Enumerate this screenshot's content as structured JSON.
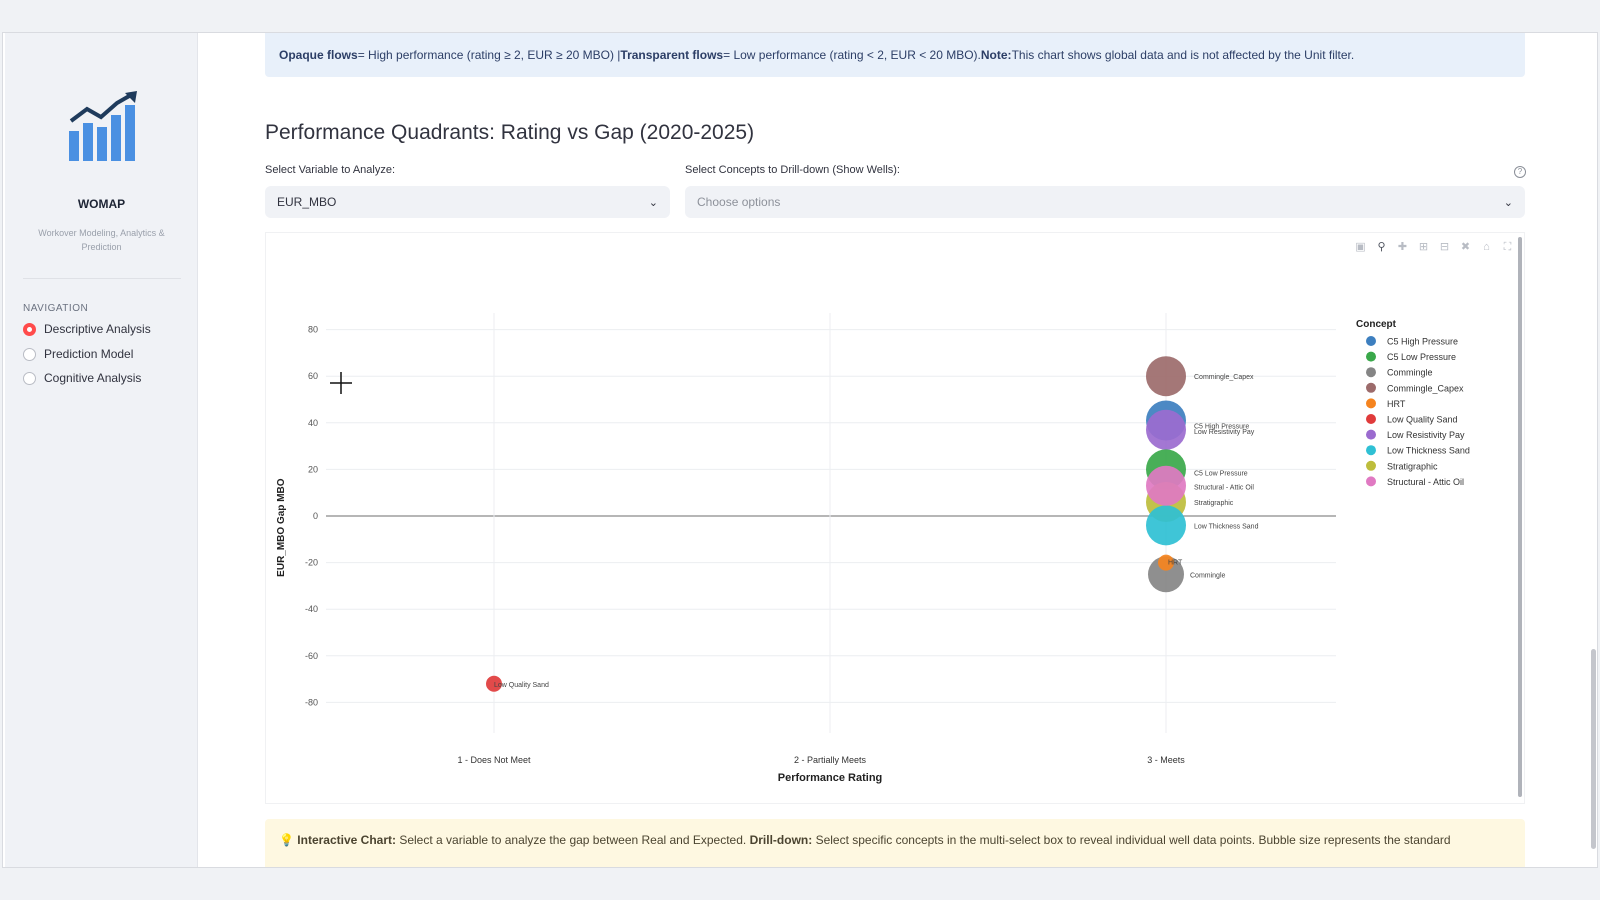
{
  "app": {
    "name": "WOMAP",
    "subtitle": "Workover Modeling, Analytics & Prediction"
  },
  "navigation": {
    "title": "NAVIGATION",
    "items": [
      {
        "label": "Descriptive Analysis",
        "selected": true
      },
      {
        "label": "Prediction Model",
        "selected": false
      },
      {
        "label": "Cognitive Analysis",
        "selected": false
      }
    ]
  },
  "info_banner": {
    "b1": "Opaque flows",
    "t1": " = High performance (rating ≥ 2, EUR ≥ 20 MBO) | ",
    "b2": "Transparent flows",
    "t2": " = Low performance (rating < 2, EUR < 20 MBO). ",
    "b3": "Note:",
    "t3": " This chart shows global data and is not affected by the Unit filter."
  },
  "section": {
    "title": "Performance Quadrants: Rating vs Gap (2020-2025)"
  },
  "controls": {
    "variable_label": "Select Variable to Analyze:",
    "variable_value": "EUR_MBO",
    "concepts_label": "Select Concepts to Drill-down (Show Wells):",
    "concepts_placeholder": "Choose options",
    "help_icon": "?"
  },
  "modebar_icons": [
    "camera-icon",
    "zoom-icon",
    "pan-icon",
    "zoom-in-icon",
    "zoom-out-icon",
    "autoscale-icon",
    "home-icon",
    "fullscreen-icon"
  ],
  "chart_data": {
    "type": "scatter",
    "xlabel": "Performance Rating",
    "ylabel": "EUR_MBO Gap MBO",
    "x_categories": [
      "1 - Does Not Meet",
      "2 - Partially Meets",
      "3 - Meets"
    ],
    "ylim": [
      -90,
      90
    ],
    "yticks": [
      80,
      60,
      40,
      20,
      0,
      -20,
      -40,
      -60,
      -80
    ],
    "grid": true,
    "legend_title": "Concept",
    "legend_position": "right",
    "points": [
      {
        "concept": "Commingle_Capex",
        "x": "3 - Meets",
        "y": 60,
        "size": "large",
        "color": "#9c6b6b",
        "label": "Commingle_Capex"
      },
      {
        "concept": "C5 High Pressure",
        "x": "3 - Meets",
        "y": 41,
        "size": "large",
        "color": "#3d7fbf",
        "label": "C5 High Pressure"
      },
      {
        "concept": "Low Resistivity Pay",
        "x": "3 - Meets",
        "y": 37,
        "size": "large",
        "color": "#9b6bcf",
        "label": "Low Resistivity Pay"
      },
      {
        "concept": "C5 Low Pressure",
        "x": "3 - Meets",
        "y": 20,
        "size": "large",
        "color": "#3aa84a",
        "label": "C5 Low Pressure"
      },
      {
        "concept": "Stratigraphic",
        "x": "3 - Meets",
        "y": 6,
        "size": "large",
        "color": "#bdbd3c",
        "label": "Stratigraphic"
      },
      {
        "concept": "Low Thickness Sand",
        "x": "3 - Meets",
        "y": -4,
        "size": "large",
        "color": "#2fc0d4",
        "label": "Low Thickness Sand"
      },
      {
        "concept": "Structural - Attic Oil",
        "x": "3 - Meets",
        "y": 13,
        "size": "large",
        "color": "#e079c2",
        "label": "Structural - Attic Oil"
      },
      {
        "concept": "Commingle",
        "x": "3 - Meets",
        "y": -25,
        "size": "medium",
        "color": "#858585",
        "label": "Commingle"
      },
      {
        "concept": "HRT",
        "x": "3 - Meets",
        "y": -20,
        "size": "small",
        "color": "#f5841f",
        "label": "HRT"
      },
      {
        "concept": "Low Quality Sand",
        "x": "1 - Does Not Meet",
        "y": -72,
        "size": "small",
        "color": "#e03b3b",
        "label": "Low Quality Sand"
      }
    ],
    "legend": [
      {
        "name": "C5 High Pressure",
        "color": "#3d7fbf"
      },
      {
        "name": "C5 Low Pressure",
        "color": "#3aa84a"
      },
      {
        "name": "Commingle",
        "color": "#858585"
      },
      {
        "name": "Commingle_Capex",
        "color": "#9c6b6b"
      },
      {
        "name": "HRT",
        "color": "#f5841f"
      },
      {
        "name": "Low Quality Sand",
        "color": "#e03b3b"
      },
      {
        "name": "Low Resistivity Pay",
        "color": "#9b6bcf"
      },
      {
        "name": "Low Thickness Sand",
        "color": "#2fc0d4"
      },
      {
        "name": "Stratigraphic",
        "color": "#bdbd3c"
      },
      {
        "name": "Structural - Attic Oil",
        "color": "#e079c2"
      }
    ]
  },
  "tip_banner": {
    "icon": "💡",
    "b1": "Interactive Chart:",
    "t1": " Select a variable to analyze the gap between Real and Expected. ",
    "b2": "Drill-down:",
    "t2": " Select specific concepts in the multi-select box to reveal individual well data points. Bubble size represents the standard"
  }
}
